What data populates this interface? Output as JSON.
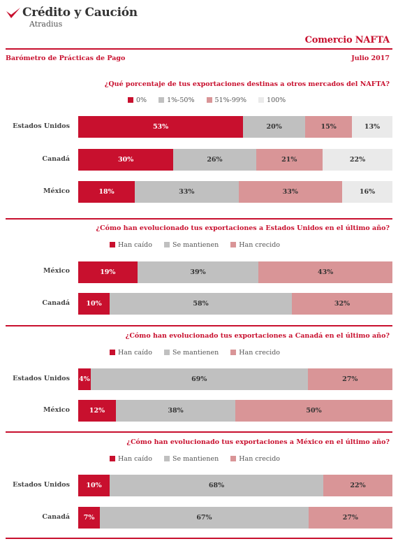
{
  "brand": {
    "name": "Crédito y Caución",
    "sub": "Atradius"
  },
  "header": {
    "report_title": "Comercio NAFTA",
    "subtitle": "Barómetro de Prácticas de Pago",
    "date": "Julio 2017"
  },
  "colors": {
    "accent": "#c8102e",
    "dark_red": "#c8102e",
    "gray": "#c0c0c0",
    "pink": "#d99597",
    "light": "#eaeaea"
  },
  "chart_data": [
    {
      "type": "bar",
      "stacked": true,
      "orientation": "horizontal",
      "title": "¿Qué porcentaje de tus exportaciones destinas a otros mercados del NAFTA?",
      "categories": [
        "Estados Unidos",
        "Canadá",
        "México"
      ],
      "series": [
        {
          "name": "0%",
          "color": "#c8102e",
          "values": [
            53,
            30,
            18
          ]
        },
        {
          "name": "1%-50%",
          "color": "#c0c0c0",
          "values": [
            20,
            26,
            33
          ]
        },
        {
          "name": "51%-99%",
          "color": "#d99597",
          "values": [
            15,
            21,
            33
          ]
        },
        {
          "name": "100%",
          "color": "#eaeaea",
          "values": [
            13,
            22,
            16
          ]
        }
      ]
    },
    {
      "type": "bar",
      "stacked": true,
      "orientation": "horizontal",
      "title": "¿Cómo han evolucionado tus exportaciones a Estados Unidos en el último año?",
      "categories": [
        "México",
        "Canadá"
      ],
      "series": [
        {
          "name": "Han caído",
          "color": "#c8102e",
          "values": [
            19,
            10
          ]
        },
        {
          "name": "Se mantienen",
          "color": "#c0c0c0",
          "values": [
            39,
            58
          ]
        },
        {
          "name": "Han crecido",
          "color": "#d99597",
          "values": [
            43,
            32
          ]
        }
      ]
    },
    {
      "type": "bar",
      "stacked": true,
      "orientation": "horizontal",
      "title": "¿Cómo han evolucionado tus exportaciones a Canadá en el último año?",
      "categories": [
        "Estados Unidos",
        "México"
      ],
      "series": [
        {
          "name": "Han caído",
          "color": "#c8102e",
          "values": [
            4,
            12
          ]
        },
        {
          "name": "Se mantienen",
          "color": "#c0c0c0",
          "values": [
            69,
            38
          ]
        },
        {
          "name": "Han crecido",
          "color": "#d99597",
          "values": [
            27,
            50
          ]
        }
      ]
    },
    {
      "type": "bar",
      "stacked": true,
      "orientation": "horizontal",
      "title": "¿Cómo han evolucionado tus exportaciones a México en el último año?",
      "categories": [
        "Estados Unidos",
        "Canadá"
      ],
      "series": [
        {
          "name": "Han caído",
          "color": "#c8102e",
          "values": [
            10,
            7
          ]
        },
        {
          "name": "Se mantienen",
          "color": "#c0c0c0",
          "values": [
            68,
            67
          ]
        },
        {
          "name": "Han crecido",
          "color": "#d99597",
          "values": [
            22,
            27
          ]
        }
      ]
    }
  ]
}
